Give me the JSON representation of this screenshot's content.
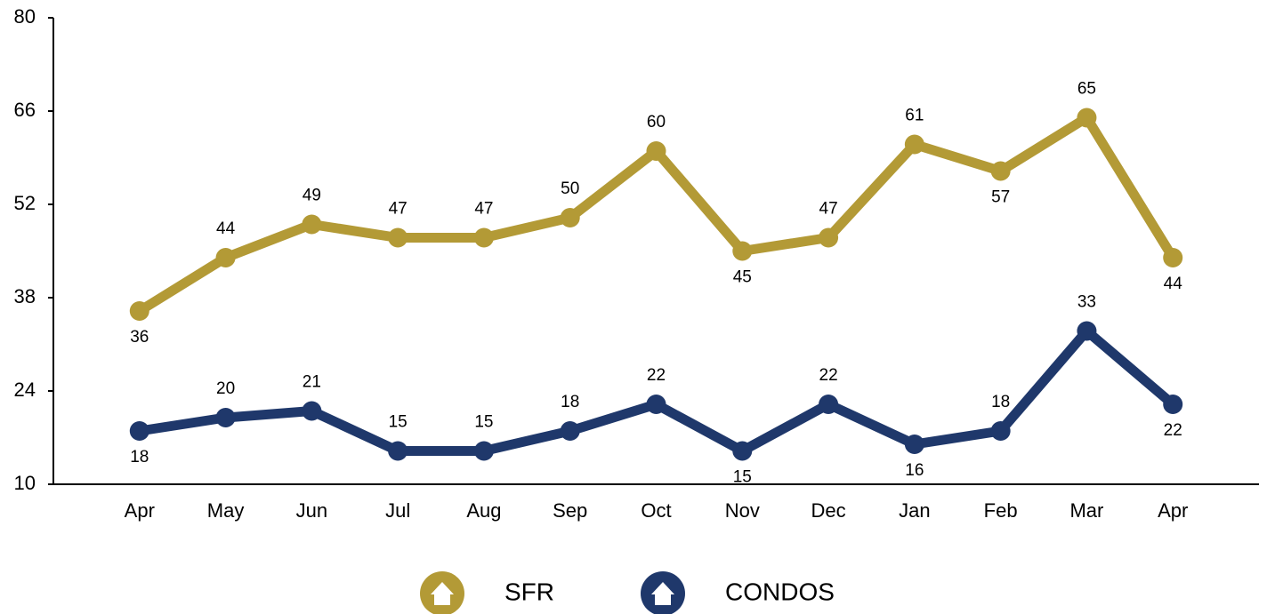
{
  "chart_data": {
    "type": "line",
    "categories": [
      "Apr",
      "May",
      "Jun",
      "Jul",
      "Aug",
      "Sep",
      "Oct",
      "Nov",
      "Dec",
      "Jan",
      "Feb",
      "Mar",
      "Apr"
    ],
    "series": [
      {
        "name": "SFR",
        "color": "#b39a36",
        "values": [
          36,
          44,
          49,
          47,
          47,
          50,
          60,
          45,
          47,
          61,
          57,
          65,
          44
        ]
      },
      {
        "name": "CONDOS",
        "color": "#1f386b",
        "values": [
          18,
          20,
          21,
          15,
          15,
          18,
          22,
          15,
          22,
          16,
          18,
          33,
          22
        ]
      }
    ],
    "ylim": [
      10,
      80
    ],
    "yticks": [
      10,
      24,
      38,
      52,
      66,
      80
    ]
  }
}
